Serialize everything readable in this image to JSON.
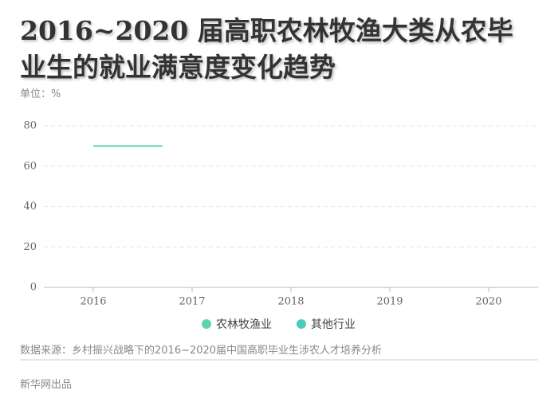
{
  "title": "2016~2020 届高职农林牧渔大类从农毕业生的就业满意度变化趋势",
  "unit": "单位：%",
  "chart_data": {
    "type": "line",
    "x": [
      2016,
      2016.7
    ],
    "series": [
      {
        "name": "农林牧渔业",
        "color": "#5fd3b0",
        "values": [
          70,
          70
        ]
      },
      {
        "name": "其他行业",
        "color": "#4ecbbd",
        "values": [
          null,
          null
        ]
      }
    ],
    "xlim": [
      2015.5,
      2020.5
    ],
    "xticks": [
      2016,
      2017,
      2018,
      2019,
      2020
    ],
    "ylim": [
      0,
      80
    ],
    "yticks": [
      0,
      20,
      40,
      60,
      80
    ],
    "grid": true
  },
  "source": "数据来源：乡村振兴战略下的2016~2020届中国高职毕业生涉农人才培养分析",
  "footer": "新华网出品"
}
